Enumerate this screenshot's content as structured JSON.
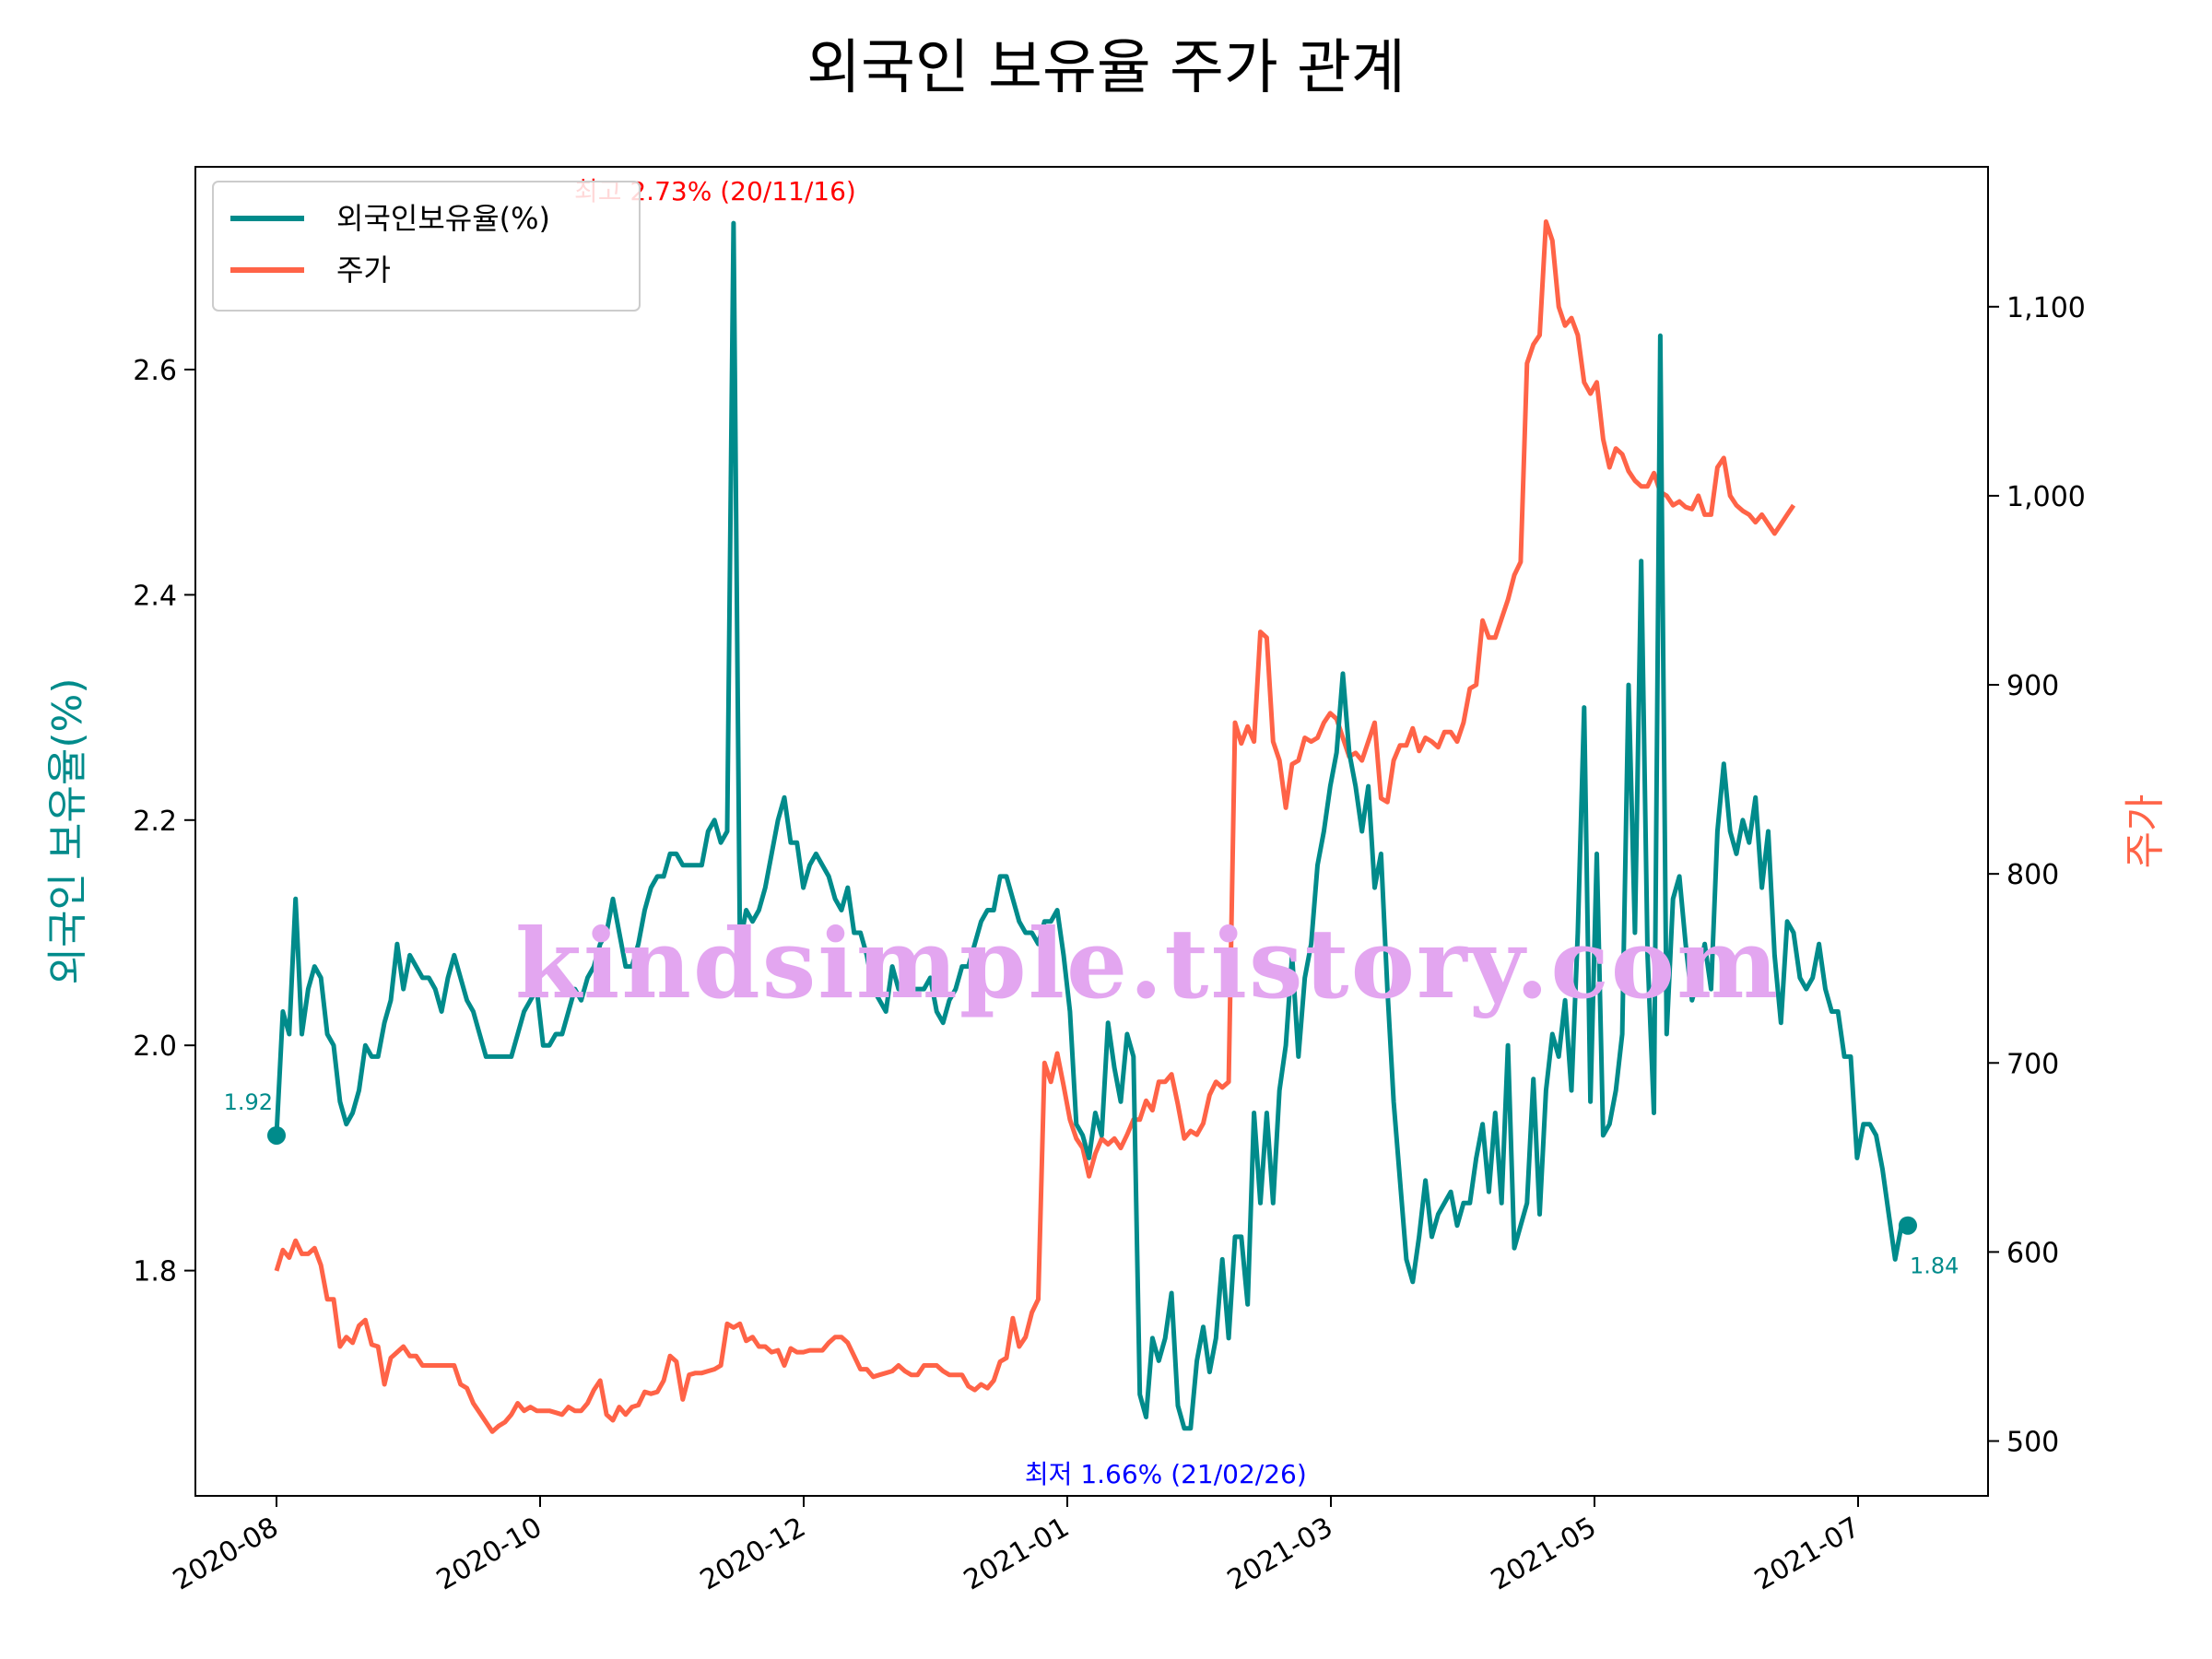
{
  "title": "외국인 보유율 주가 관계",
  "watermark": "kindsimple.tistory.com",
  "colors": {
    "foreign": "#008B8B",
    "price": "#FF6347",
    "max": "#FF0000",
    "min": "#0000FF"
  },
  "chart_data": {
    "type": "line",
    "y_left": {
      "label": "외국인 보유율(%)",
      "ylim": [
        1.6,
        2.78
      ],
      "ticks": [
        "1.8",
        "2.0",
        "2.2",
        "2.4",
        "2.6"
      ]
    },
    "y_right": {
      "label": "주가",
      "ylim": [
        471,
        1174
      ],
      "ticks": [
        "500",
        "600",
        "700",
        "800",
        "900",
        "1,000",
        "1,100"
      ]
    },
    "x": {
      "ticks": [
        "2020-08",
        "2020-10",
        "2020-12",
        "2021-01",
        "2021-03",
        "2021-05",
        "2021-07"
      ]
    },
    "legend": [
      "외국인보유율(%)",
      "주가"
    ],
    "annotations": {
      "max": "최고 2.73% (20/11/16)",
      "min": "최저 1.66% (21/02/26)",
      "start": "1.92",
      "end": "1.84"
    },
    "series": [
      {
        "name": "외국인보유율(%)",
        "axis": "left",
        "values": [
          1.92,
          2.03,
          2.01,
          2.13,
          2.01,
          2.05,
          2.07,
          2.06,
          2.01,
          2.0,
          1.95,
          1.93,
          1.94,
          1.96,
          2.0,
          1.99,
          1.99,
          2.02,
          2.04,
          2.09,
          2.05,
          2.08,
          2.07,
          2.06,
          2.06,
          2.05,
          2.03,
          2.06,
          2.08,
          2.06,
          2.04,
          2.03,
          2.01,
          1.99,
          1.99,
          1.99,
          1.99,
          1.99,
          2.01,
          2.03,
          2.04,
          2.05,
          2.0,
          2.0,
          2.01,
          2.01,
          2.03,
          2.05,
          2.04,
          2.06,
          2.07,
          2.09,
          2.1,
          2.13,
          2.1,
          2.07,
          2.07,
          2.09,
          2.12,
          2.14,
          2.15,
          2.15,
          2.17,
          2.17,
          2.16,
          2.16,
          2.16,
          2.16,
          2.19,
          2.2,
          2.18,
          2.19,
          2.73,
          2.09,
          2.12,
          2.11,
          2.12,
          2.14,
          2.17,
          2.2,
          2.22,
          2.18,
          2.18,
          2.14,
          2.16,
          2.17,
          2.16,
          2.15,
          2.13,
          2.12,
          2.14,
          2.1,
          2.1,
          2.08,
          2.05,
          2.04,
          2.03,
          2.07,
          2.05,
          2.05,
          2.05,
          2.05,
          2.05,
          2.06,
          2.03,
          2.02,
          2.04,
          2.05,
          2.07,
          2.07,
          2.09,
          2.11,
          2.12,
          2.12,
          2.15,
          2.15,
          2.13,
          2.11,
          2.1,
          2.1,
          2.09,
          2.11,
          2.11,
          2.12,
          2.08,
          2.03,
          1.93,
          1.92,
          1.9,
          1.94,
          1.92,
          2.02,
          1.98,
          1.95,
          2.01,
          1.99,
          1.69,
          1.67,
          1.74,
          1.72,
          1.74,
          1.78,
          1.68,
          1.66,
          1.66,
          1.72,
          1.75,
          1.71,
          1.74,
          1.81,
          1.74,
          1.83,
          1.83,
          1.77,
          1.94,
          1.86,
          1.94,
          1.86,
          1.96,
          2.0,
          2.08,
          1.99,
          2.06,
          2.09,
          2.16,
          2.19,
          2.23,
          2.26,
          2.33,
          2.26,
          2.23,
          2.19,
          2.23,
          2.14,
          2.17,
          2.05,
          1.95,
          1.88,
          1.81,
          1.79,
          1.83,
          1.88,
          1.83,
          1.85,
          1.86,
          1.87,
          1.84,
          1.86,
          1.86,
          1.9,
          1.93,
          1.87,
          1.94,
          1.86,
          2.0,
          1.82,
          1.84,
          1.86,
          1.97,
          1.85,
          1.96,
          2.01,
          1.99,
          2.04,
          1.96,
          2.1,
          2.3,
          1.95,
          2.17,
          1.92,
          1.93,
          1.96,
          2.01,
          2.32,
          2.1,
          2.43,
          2.08,
          1.94,
          2.63,
          2.01,
          2.13,
          2.15,
          2.09,
          2.04,
          2.06,
          2.09,
          2.05,
          2.19,
          2.25,
          2.19,
          2.17,
          2.2,
          2.18,
          2.22,
          2.14,
          2.19,
          2.08,
          2.02,
          2.11,
          2.1,
          2.06,
          2.05,
          2.06,
          2.09,
          2.05,
          2.03,
          2.03,
          1.99,
          1.99,
          1.9,
          1.93,
          1.93,
          1.92,
          1.89,
          1.85,
          1.81,
          1.84,
          1.84
        ]
      },
      {
        "name": "주가",
        "axis": "right",
        "values": [
          590,
          601,
          597,
          606,
          599,
          599,
          602,
          593,
          575,
          575,
          550,
          555,
          552,
          561,
          564,
          551,
          550,
          530,
          544,
          547,
          550,
          545,
          545,
          540,
          540,
          540,
          540,
          540,
          540,
          530,
          528,
          520,
          515,
          510,
          505,
          508,
          510,
          514,
          520,
          516,
          518,
          516,
          516,
          516,
          515,
          514,
          518,
          516,
          516,
          520,
          527,
          532,
          514,
          511,
          518,
          514,
          518,
          519,
          526,
          525,
          526,
          532,
          545,
          542,
          522,
          535,
          536,
          536,
          537,
          538,
          540,
          562,
          560,
          562,
          553,
          555,
          550,
          550,
          547,
          548,
          540,
          549,
          547,
          547,
          548,
          548,
          548,
          552,
          555,
          555,
          552,
          545,
          538,
          538,
          534,
          535,
          536,
          537,
          540,
          537,
          535,
          535,
          540,
          540,
          540,
          537,
          535,
          535,
          535,
          529,
          527,
          530,
          528,
          532,
          542,
          544,
          565,
          550,
          555,
          568,
          575,
          700,
          690,
          705,
          688,
          670,
          660,
          655,
          640,
          652,
          660,
          657,
          660,
          655,
          662,
          670,
          670,
          680,
          675,
          690,
          690,
          694,
          678,
          660,
          664,
          662,
          668,
          683,
          690,
          687,
          690,
          880,
          869,
          878,
          870,
          928,
          925,
          870,
          860,
          835,
          858,
          860,
          872,
          870,
          872,
          880,
          885,
          882,
          872,
          862,
          864,
          860,
          870,
          880,
          840,
          838,
          860,
          868,
          868,
          877,
          865,
          872,
          870,
          867,
          875,
          875,
          870,
          880,
          898,
          900,
          934,
          925,
          925,
          935,
          945,
          958,
          965,
          1070,
          1080,
          1085,
          1145,
          1135,
          1100,
          1090,
          1094,
          1085,
          1060,
          1054,
          1060,
          1030,
          1015,
          1025,
          1022,
          1013,
          1008,
          1005,
          1005,
          1012,
          1002,
          1000,
          995,
          997,
          994,
          993,
          1000,
          990,
          990,
          1015,
          1020,
          1000,
          995,
          992,
          990,
          986,
          990,
          985,
          980,
          985,
          990,
          995
        ]
      }
    ]
  }
}
